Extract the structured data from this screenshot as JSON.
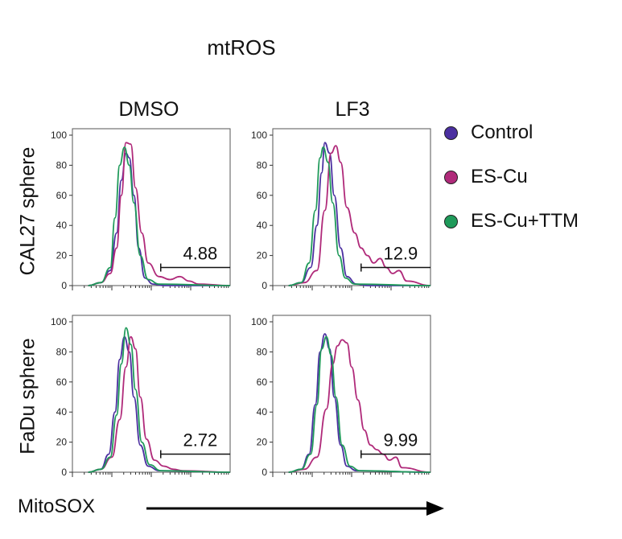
{
  "title": "mtROS",
  "columns": [
    "DMSO",
    "LF3"
  ],
  "rows": [
    "CAL27 sphere",
    "FaDu sphere"
  ],
  "legend": [
    {
      "label": "Control",
      "color": "#4b2fa0"
    },
    {
      "label": "ES-Cu",
      "color": "#b02a7a"
    },
    {
      "label": "ES-Cu+TTM",
      "color": "#1f9a5a"
    }
  ],
  "x_axis_label": "MitoSOX",
  "chart_data": [
    {
      "type": "line",
      "row": "CAL27 sphere",
      "column": "DMSO",
      "ylim": [
        0,
        100
      ],
      "yticks": [
        "0",
        "20",
        "40",
        "60",
        "80",
        "100"
      ],
      "gate_value": "4.88",
      "series": [
        {
          "name": "Control",
          "x": [
            0.1,
            0.18,
            0.24,
            0.28,
            0.31,
            0.34,
            0.36,
            0.39,
            0.42,
            0.46,
            0.51,
            0.58,
            1.0
          ],
          "y": [
            0,
            2,
            10,
            35,
            70,
            88,
            85,
            60,
            25,
            5,
            1,
            0,
            0
          ]
        },
        {
          "name": "ES-Cu",
          "x": [
            0.1,
            0.18,
            0.24,
            0.28,
            0.31,
            0.34,
            0.37,
            0.4,
            0.44,
            0.48,
            0.55,
            0.62,
            0.68,
            0.74,
            0.8,
            1.0
          ],
          "y": [
            0,
            2,
            8,
            25,
            60,
            95,
            94,
            65,
            35,
            15,
            6,
            4,
            6,
            3,
            1,
            0
          ]
        },
        {
          "name": "ES-Cu+TTM",
          "x": [
            0.1,
            0.18,
            0.24,
            0.27,
            0.3,
            0.33,
            0.36,
            0.39,
            0.43,
            0.48,
            0.55,
            1.0
          ],
          "y": [
            0,
            2,
            12,
            45,
            80,
            92,
            80,
            55,
            20,
            4,
            1,
            0
          ]
        }
      ]
    },
    {
      "type": "line",
      "row": "CAL27 sphere",
      "column": "LF3",
      "ylim": [
        0,
        100
      ],
      "yticks": [
        "0",
        "20",
        "40",
        "60",
        "80",
        "100"
      ],
      "gate_value": "12.9",
      "series": [
        {
          "name": "Control",
          "x": [
            0.1,
            0.18,
            0.24,
            0.28,
            0.31,
            0.33,
            0.36,
            0.39,
            0.43,
            0.47,
            0.53,
            0.6,
            1.0
          ],
          "y": [
            0,
            2,
            12,
            40,
            75,
            95,
            88,
            60,
            25,
            6,
            1,
            0,
            0
          ]
        },
        {
          "name": "ES-Cu",
          "x": [
            0.1,
            0.2,
            0.28,
            0.33,
            0.37,
            0.4,
            0.43,
            0.47,
            0.52,
            0.56,
            0.6,
            0.64,
            0.68,
            0.72,
            0.76,
            0.8,
            0.85,
            1.0
          ],
          "y": [
            0,
            2,
            10,
            50,
            88,
            93,
            82,
            52,
            35,
            25,
            20,
            15,
            18,
            12,
            8,
            10,
            3,
            0
          ]
        },
        {
          "name": "ES-Cu+TTM",
          "x": [
            0.1,
            0.18,
            0.23,
            0.27,
            0.3,
            0.32,
            0.35,
            0.38,
            0.42,
            0.46,
            0.52,
            1.0
          ],
          "y": [
            0,
            2,
            15,
            50,
            85,
            92,
            82,
            55,
            20,
            5,
            1,
            0
          ]
        }
      ]
    },
    {
      "type": "line",
      "row": "FaDu sphere",
      "column": "DMSO",
      "ylim": [
        0,
        100
      ],
      "yticks": [
        "0",
        "20",
        "40",
        "60",
        "80",
        "100"
      ],
      "gate_value": "2.72",
      "series": [
        {
          "name": "Control",
          "x": [
            0.1,
            0.18,
            0.23,
            0.27,
            0.3,
            0.33,
            0.36,
            0.39,
            0.43,
            0.48,
            0.55,
            1.0
          ],
          "y": [
            0,
            2,
            12,
            40,
            75,
            90,
            80,
            50,
            18,
            4,
            1,
            0
          ]
        },
        {
          "name": "ES-Cu",
          "x": [
            0.1,
            0.18,
            0.25,
            0.3,
            0.34,
            0.37,
            0.4,
            0.43,
            0.47,
            0.52,
            0.58,
            0.64,
            0.7,
            1.0
          ],
          "y": [
            0,
            2,
            10,
            35,
            70,
            90,
            82,
            50,
            22,
            8,
            4,
            2,
            1,
            0
          ]
        },
        {
          "name": "ES-Cu+TTM",
          "x": [
            0.1,
            0.18,
            0.24,
            0.28,
            0.31,
            0.34,
            0.37,
            0.4,
            0.44,
            0.49,
            0.56,
            1.0
          ],
          "y": [
            0,
            2,
            10,
            38,
            72,
            96,
            85,
            55,
            20,
            5,
            1,
            0
          ]
        }
      ]
    },
    {
      "type": "line",
      "row": "FaDu sphere",
      "column": "LF3",
      "ylim": [
        0,
        100
      ],
      "yticks": [
        "0",
        "20",
        "40",
        "60",
        "80",
        "100"
      ],
      "gate_value": "9.99",
      "series": [
        {
          "name": "Control",
          "x": [
            0.1,
            0.18,
            0.23,
            0.27,
            0.3,
            0.33,
            0.36,
            0.39,
            0.43,
            0.47,
            0.53,
            1.0
          ],
          "y": [
            0,
            2,
            12,
            45,
            80,
            92,
            82,
            50,
            18,
            4,
            1,
            0
          ]
        },
        {
          "name": "ES-Cu",
          "x": [
            0.1,
            0.2,
            0.28,
            0.34,
            0.38,
            0.41,
            0.44,
            0.47,
            0.5,
            0.54,
            0.58,
            0.62,
            0.66,
            0.7,
            0.74,
            0.78,
            0.82,
            1.0
          ],
          "y": [
            0,
            2,
            10,
            42,
            72,
            84,
            88,
            86,
            70,
            48,
            28,
            18,
            15,
            12,
            8,
            10,
            3,
            0
          ]
        },
        {
          "name": "ES-Cu+TTM",
          "x": [
            0.1,
            0.18,
            0.24,
            0.28,
            0.31,
            0.34,
            0.37,
            0.4,
            0.44,
            0.49,
            0.55,
            1.0
          ],
          "y": [
            0,
            2,
            12,
            45,
            82,
            90,
            78,
            50,
            18,
            4,
            1,
            0
          ]
        }
      ]
    }
  ]
}
